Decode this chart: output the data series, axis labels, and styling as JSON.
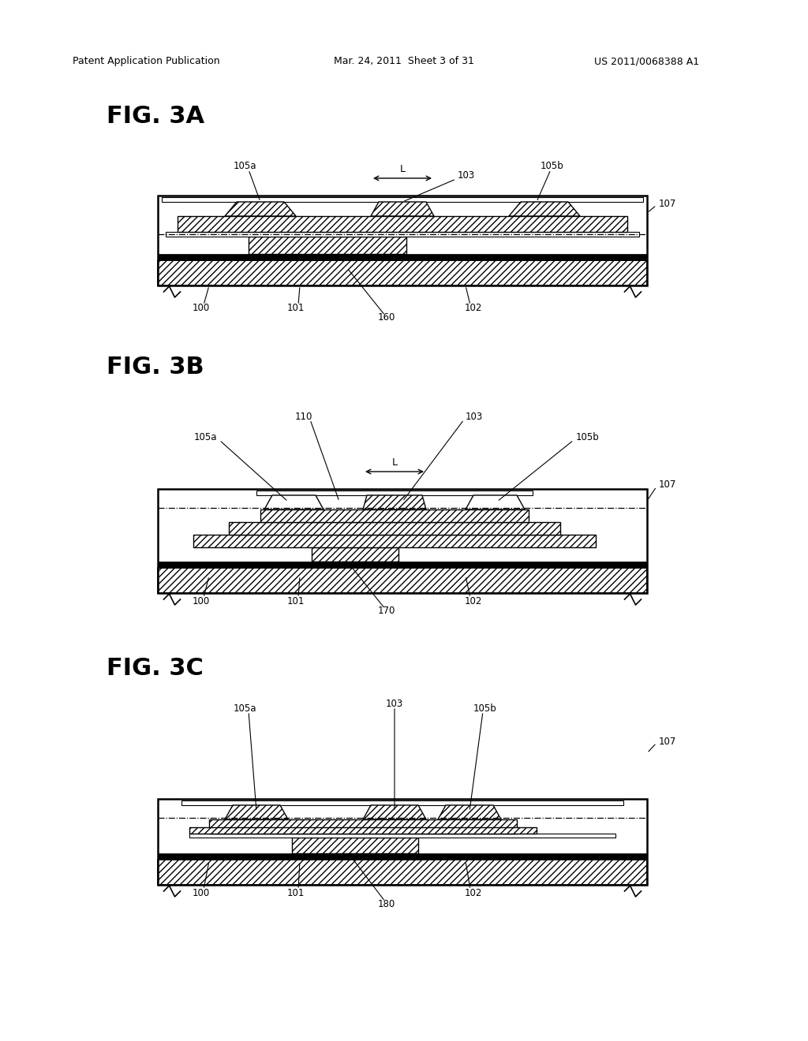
{
  "header_left": "Patent Application Publication",
  "header_mid": "Mar. 24, 2011  Sheet 3 of 31",
  "header_right": "US 2011/0068388 A1",
  "bg_color": "#ffffff"
}
